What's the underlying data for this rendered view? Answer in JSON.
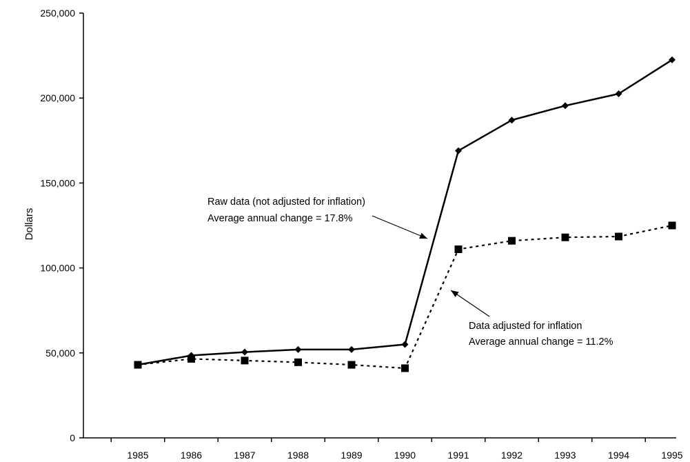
{
  "chart_data": {
    "type": "line",
    "title": "",
    "xlabel": "",
    "ylabel": "Dollars",
    "x": [
      1985,
      1986,
      1987,
      1988,
      1989,
      1990,
      1991,
      1992,
      1993,
      1994,
      1995
    ],
    "xticks": [
      "1985",
      "1986",
      "1987",
      "1988",
      "1989",
      "1990",
      "1991",
      "1992",
      "1993",
      "1994",
      "1995"
    ],
    "ylim": [
      0,
      250000
    ],
    "yticks": [
      {
        "value": 0,
        "label": "0"
      },
      {
        "value": 50000,
        "label": "50,000"
      },
      {
        "value": 100000,
        "label": "100,000"
      },
      {
        "value": 150000,
        "label": "150,000"
      },
      {
        "value": 200000,
        "label": "200,000"
      },
      {
        "value": 250000,
        "label": "250,000"
      }
    ],
    "grid": false,
    "series": [
      {
        "key": "raw",
        "line_style": "solid",
        "marker": "diamond",
        "values": [
          43000,
          48500,
          50500,
          52000,
          52000,
          55000,
          169000,
          187000,
          195500,
          202500,
          222500
        ]
      },
      {
        "key": "adjusted",
        "line_style": "dotted",
        "marker": "square",
        "values": [
          43000,
          46500,
          45500,
          44500,
          43000,
          41000,
          111000,
          116000,
          118000,
          118500,
          125000
        ]
      }
    ],
    "annotations": [
      {
        "key": "raw",
        "lines": [
          "Raw data (not adjusted for inflation)",
          "Average annual change = 17.8%"
        ]
      },
      {
        "key": "adjusted",
        "lines": [
          "Data adjusted for inflation",
          "Average annual change = 11.2%"
        ]
      }
    ]
  }
}
